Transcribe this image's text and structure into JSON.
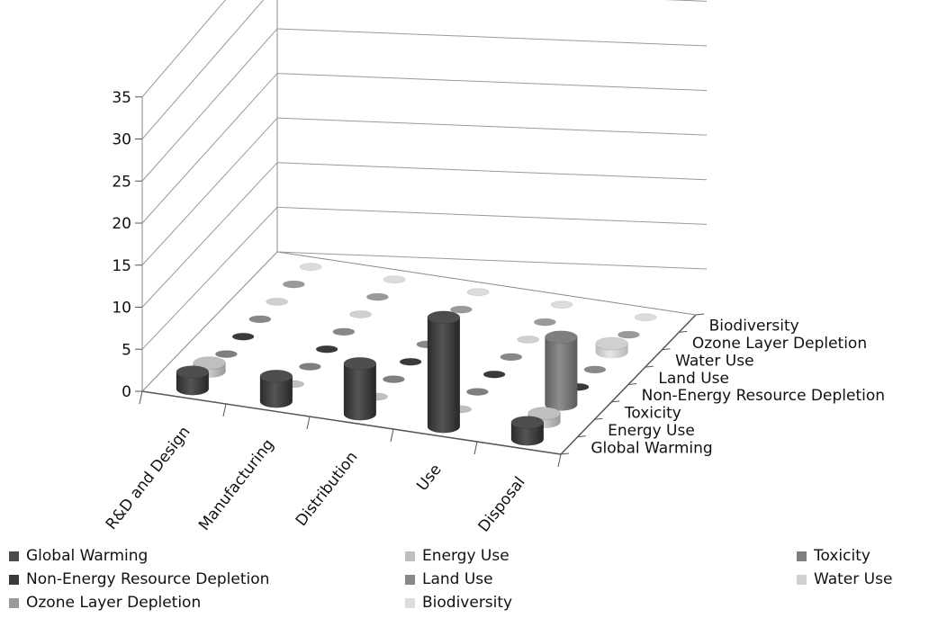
{
  "chart_data": {
    "type": "bar",
    "title": "",
    "xlabel": "",
    "ylabel": "",
    "ylim": [
      0,
      35
    ],
    "yticks": [
      0,
      5,
      10,
      15,
      20,
      25,
      30,
      35
    ],
    "grid": true,
    "legend_position": "bottom",
    "categories": [
      "R&D and Design",
      "Manufacturing",
      "Distribution",
      "Use",
      "Disposal"
    ],
    "series": [
      {
        "name": "Global Warming",
        "color": "#4d4d4d",
        "values": [
          2,
          3,
          6,
          13,
          2
        ]
      },
      {
        "name": "Energy Use",
        "color": "#bfbfbf",
        "values": [
          1,
          0,
          0,
          0,
          1
        ]
      },
      {
        "name": "Toxicity",
        "color": "#7f7f7f",
        "values": [
          0,
          0,
          0,
          0,
          8
        ]
      },
      {
        "name": "Non-Energy Resource Depletion",
        "color": "#3a3a3a",
        "values": [
          0,
          0,
          0,
          0,
          0
        ]
      },
      {
        "name": "Land Use",
        "color": "#888888",
        "values": [
          0,
          0,
          0,
          0,
          0
        ]
      },
      {
        "name": "Water Use",
        "color": "#d0d0d0",
        "values": [
          0,
          0,
          0,
          0,
          1
        ]
      },
      {
        "name": "Ozone Layer Depletion",
        "color": "#9a9a9a",
        "values": [
          0,
          0,
          0,
          0,
          0
        ]
      },
      {
        "name": "Biodiversity",
        "color": "#dcdcdc",
        "values": [
          0,
          0,
          0,
          0,
          0
        ]
      }
    ],
    "depth_labels": [
      "Global Warming",
      "Energy Use",
      "Toxicity",
      "Non-Energy Resource Depletion",
      "Land Use",
      "Water Use",
      "Ozone Layer Depletion",
      "Biodiversity"
    ]
  }
}
